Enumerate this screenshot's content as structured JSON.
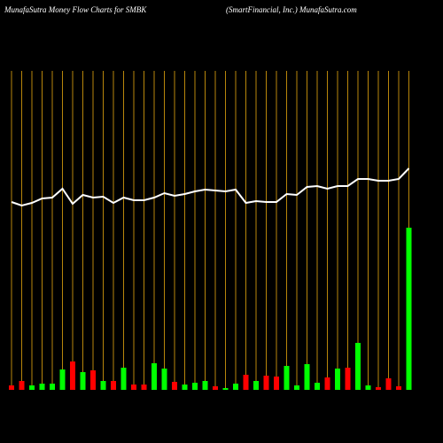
{
  "chart_data": {
    "type": "bar",
    "title": "MunafaSutra  Money Flow  Charts for SMBK",
    "subtitle": "(SmartFinancial,  Inc.) MunafaSutra.com",
    "categories": [
      null,
      null,
      null,
      null,
      null,
      null,
      null,
      null,
      null,
      null,
      null,
      null,
      null,
      null,
      null,
      null,
      null,
      null,
      null,
      null,
      null,
      null,
      null,
      null,
      null,
      null,
      null,
      null,
      null,
      null,
      null,
      null,
      null,
      null,
      null,
      null,
      null,
      null,
      null,
      null
    ],
    "values": [
      5,
      10,
      5,
      7,
      7,
      23,
      32,
      20,
      22,
      10,
      10,
      25,
      6,
      6,
      30,
      24,
      9,
      6,
      8,
      10,
      4,
      2,
      7,
      17,
      10,
      16,
      15,
      27,
      5,
      29,
      8,
      14,
      24,
      25,
      53,
      5,
      3,
      13,
      4,
      183
    ],
    "colors": [
      "#ff0000",
      "#ff0000",
      "#00ff00",
      "#00ff00",
      "#00ff00",
      "#00ff00",
      "#ff0000",
      "#00ff00",
      "#ff0000",
      "#00ff00",
      "#ff0000",
      "#00ff00",
      "#ff0000",
      "#ff0000",
      "#00ff00",
      "#00ff00",
      "#ff0000",
      "#00ff00",
      "#00ff00",
      "#00ff00",
      "#ff0000",
      "#00ff00",
      "#00ff00",
      "#ff0000",
      "#00ff00",
      "#ff0000",
      "#ff0000",
      "#00ff00",
      "#00ff00",
      "#00ff00",
      "#00ff00",
      "#ff0000",
      "#00ff00",
      "#ff0000",
      "#00ff00",
      "#00ff00",
      "#ff0000",
      "#ff0000",
      "#ff0000",
      "#00ff00"
    ],
    "line": {
      "color": "#ffffff",
      "values": [
        212,
        208,
        211,
        216,
        217,
        227,
        210,
        220,
        217,
        218,
        211,
        217,
        214,
        214,
        217,
        222,
        219,
        221,
        224,
        226,
        225,
        224,
        226,
        211,
        213,
        212,
        212,
        221,
        220,
        229,
        230,
        227,
        230,
        230,
        238,
        238,
        236,
        236,
        238,
        250
      ]
    },
    "ylim": [
      0,
      440
    ],
    "grid_color": "#b8860b"
  }
}
